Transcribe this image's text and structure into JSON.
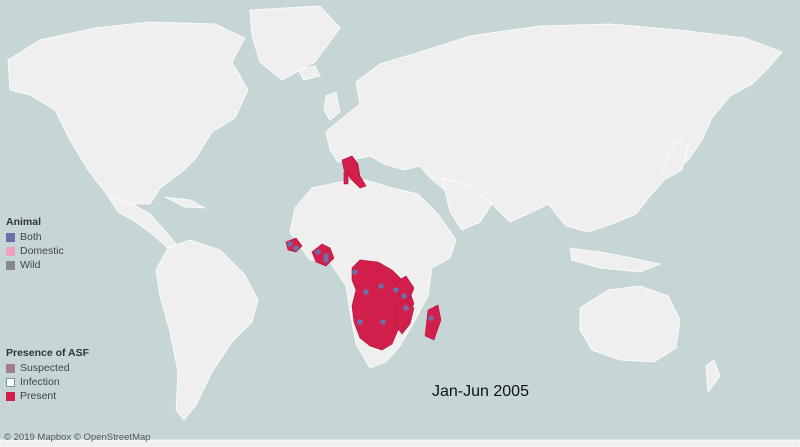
{
  "legend_animal": {
    "title": "Animal",
    "items": [
      {
        "label": "Both",
        "color": "#6e6fa8"
      },
      {
        "label": "Domestic",
        "color": "#ef9fbf"
      },
      {
        "label": "Wild",
        "color": "#8a8a8a"
      }
    ]
  },
  "legend_presence": {
    "title": "Presence of ASF",
    "items": [
      {
        "label": "Suspected",
        "color": "#a07f84"
      },
      {
        "label": "Infection",
        "color": "#ffffff"
      },
      {
        "label": "Present",
        "color": "#d21e4a"
      }
    ]
  },
  "period": "Jan-Jun 2005",
  "attribution": "© 2019 Mapbox © OpenStreetMap",
  "colors": {
    "ocean": "#c6d6d6",
    "land": "#efefef",
    "border": "#ffffff",
    "present": "#d21e4a",
    "both_marker": "#6e6fa8"
  }
}
